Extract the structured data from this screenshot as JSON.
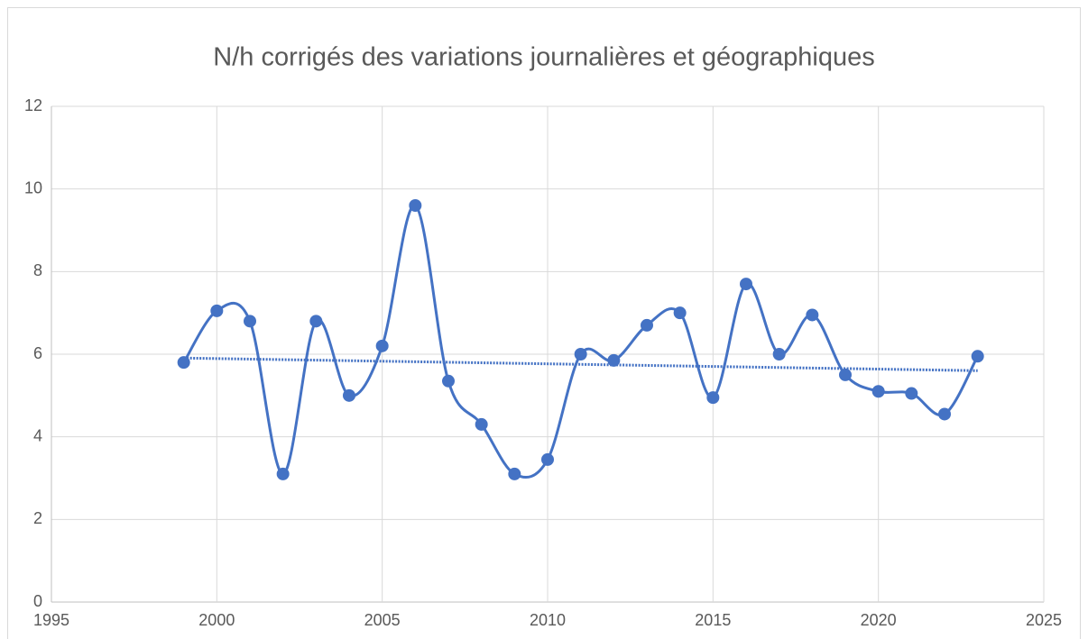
{
  "chart_data": {
    "type": "scatter",
    "title": "N/h corrigés des variations journalières et géographiques",
    "x": [
      1999,
      2000,
      2001,
      2002,
      2003,
      2004,
      2005,
      2006,
      2007,
      2008,
      2009,
      2010,
      2011,
      2012,
      2013,
      2014,
      2015,
      2016,
      2017,
      2018,
      2019,
      2020,
      2021,
      2022,
      2023
    ],
    "series": [
      {
        "color": "#4472c4",
        "values": [
          5.8,
          7.05,
          6.8,
          3.1,
          6.8,
          5.0,
          6.2,
          9.6,
          5.35,
          4.3,
          3.1,
          3.45,
          6.0,
          5.85,
          6.7,
          7.0,
          4.95,
          7.7,
          6.0,
          6.95,
          5.5,
          5.1,
          5.05,
          4.55,
          5.95
        ]
      }
    ],
    "smooth": true,
    "markers": true,
    "trendline": "linear",
    "xlim": [
      1995,
      2025
    ],
    "xticks": [
      1995,
      2000,
      2005,
      2010,
      2015,
      2020,
      2025
    ],
    "ylim": [
      0,
      12
    ],
    "yticks": [
      0,
      2,
      4,
      6,
      8,
      10,
      12
    ],
    "grid": true
  }
}
